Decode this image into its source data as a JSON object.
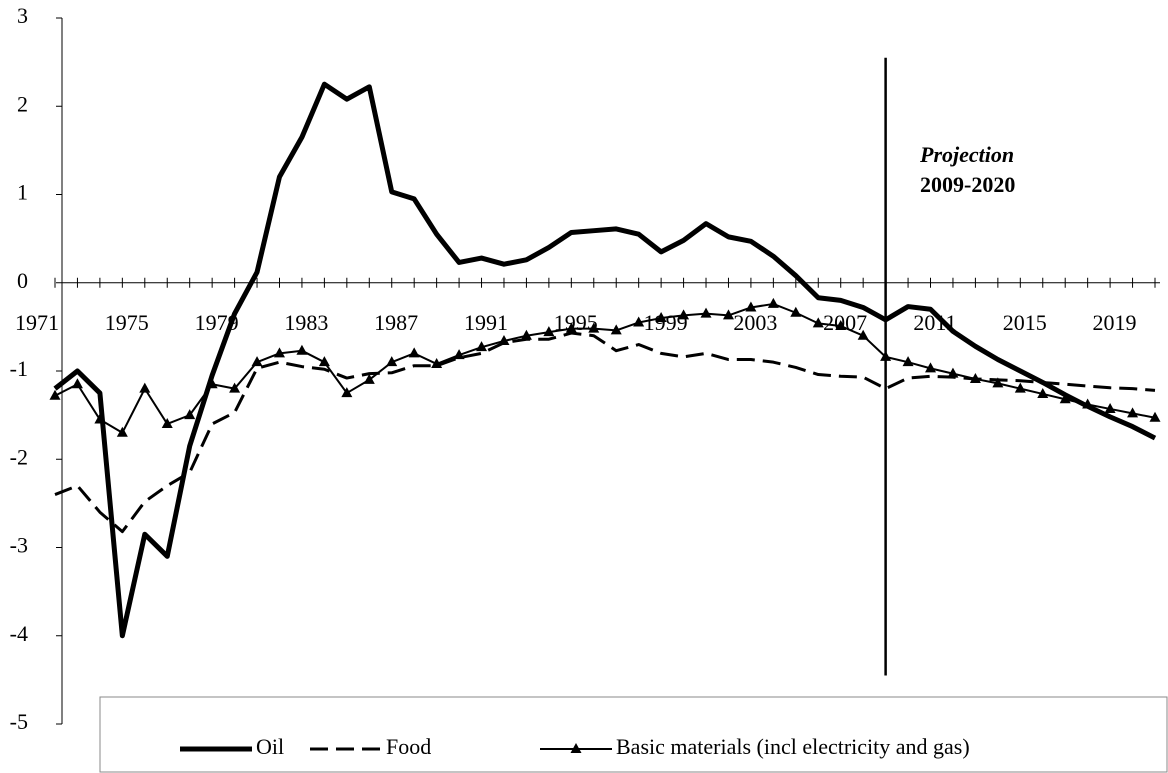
{
  "chart_data": {
    "type": "line",
    "x": [
      1971,
      1972,
      1973,
      1974,
      1975,
      1976,
      1977,
      1978,
      1979,
      1980,
      1981,
      1982,
      1983,
      1984,
      1985,
      1986,
      1987,
      1988,
      1989,
      1990,
      1991,
      1992,
      1993,
      1994,
      1995,
      1996,
      1997,
      1998,
      1999,
      2000,
      2001,
      2002,
      2003,
      2004,
      2005,
      2006,
      2007,
      2008,
      2009,
      2010,
      2011,
      2012,
      2013,
      2014,
      2015,
      2016,
      2017,
      2018,
      2019,
      2020
    ],
    "xlim": [
      1971,
      2020
    ],
    "xticks": [
      1971,
      1975,
      1979,
      1983,
      1987,
      1991,
      1995,
      1999,
      2003,
      2007,
      2011,
      2015,
      2019
    ],
    "ylim": [
      -5,
      3
    ],
    "yticks": [
      -5,
      -4,
      -3,
      -2,
      -1,
      0,
      1,
      2,
      3
    ],
    "projection_year": 2008,
    "annotations": [
      "Projection",
      "2009-2020"
    ],
    "legend": "bottom",
    "series": [
      {
        "name": "Oil",
        "color": "#000000",
        "width": 5,
        "dashed": false,
        "marker": null,
        "values": [
          -1.2,
          -1.0,
          -1.25,
          -4.0,
          -2.85,
          -3.1,
          -1.85,
          -1.05,
          -0.35,
          0.12,
          1.2,
          1.65,
          2.25,
          2.08,
          2.22,
          1.03,
          0.95,
          0.55,
          0.23,
          0.28,
          0.21,
          0.26,
          0.4,
          0.57,
          0.59,
          0.61,
          0.55,
          0.35,
          0.48,
          0.67,
          0.52,
          0.47,
          0.3,
          0.08,
          -0.17,
          -0.2,
          -0.28,
          -0.42,
          -0.27,
          -0.3,
          -0.55,
          -0.72,
          -0.87,
          -1.0,
          -1.13,
          -1.27,
          -1.4,
          -1.52,
          -1.63,
          -1.76
        ]
      },
      {
        "name": "Food",
        "color": "#000000",
        "width": 3,
        "dashed": true,
        "marker": null,
        "values": [
          -2.4,
          -2.3,
          -2.6,
          -2.82,
          -2.48,
          -2.3,
          -2.15,
          -1.6,
          -1.47,
          -0.97,
          -0.9,
          -0.95,
          -0.98,
          -1.08,
          -1.03,
          -1.02,
          -0.94,
          -0.94,
          -0.85,
          -0.8,
          -0.68,
          -0.64,
          -0.64,
          -0.57,
          -0.6,
          -0.77,
          -0.7,
          -0.8,
          -0.84,
          -0.8,
          -0.87,
          -0.87,
          -0.9,
          -0.96,
          -1.04,
          -1.06,
          -1.07,
          -1.2,
          -1.08,
          -1.06,
          -1.07,
          -1.09,
          -1.1,
          -1.11,
          -1.13,
          -1.15,
          -1.17,
          -1.19,
          -1.2,
          -1.22
        ]
      },
      {
        "name": "Basic materials (incl electricity and gas)",
        "color": "#000000",
        "width": 2,
        "dashed": false,
        "marker": "triangle",
        "values": [
          -1.28,
          -1.15,
          -1.55,
          -1.7,
          -1.2,
          -1.6,
          -1.5,
          -1.15,
          -1.2,
          -0.9,
          -0.8,
          -0.77,
          -0.9,
          -1.25,
          -1.1,
          -0.9,
          -0.8,
          -0.92,
          -0.82,
          -0.73,
          -0.66,
          -0.6,
          -0.56,
          -0.52,
          -0.52,
          -0.54,
          -0.45,
          -0.4,
          -0.37,
          -0.35,
          -0.37,
          -0.28,
          -0.24,
          -0.34,
          -0.46,
          -0.49,
          -0.6,
          -0.84,
          -0.9,
          -0.97,
          -1.03,
          -1.09,
          -1.14,
          -1.2,
          -1.26,
          -1.32,
          -1.38,
          -1.43,
          -1.48,
          -1.53
        ]
      }
    ]
  }
}
